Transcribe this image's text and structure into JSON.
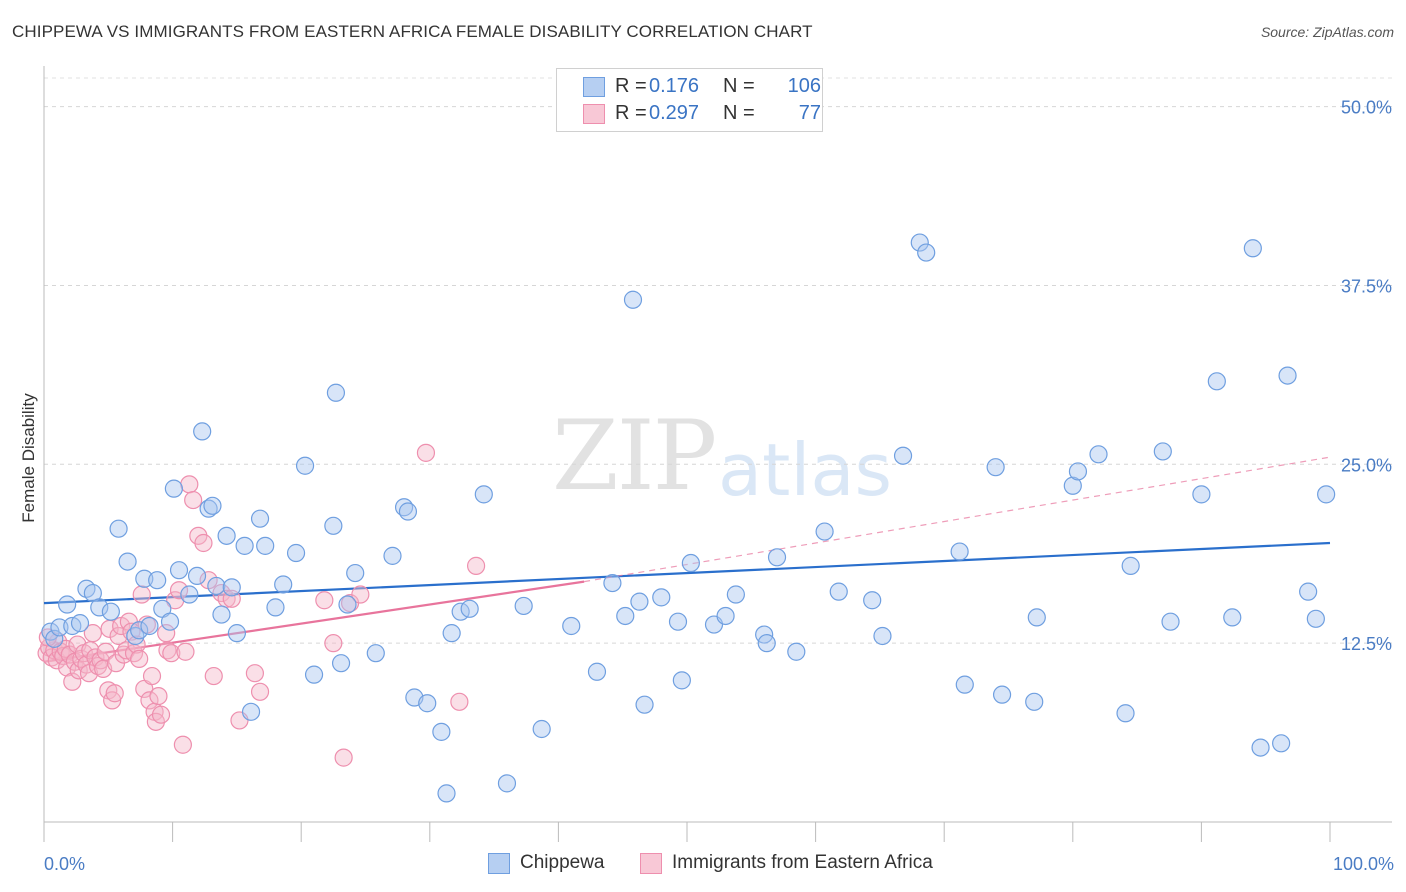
{
  "header": {
    "title": "CHIPPEWA VS IMMIGRANTS FROM EASTERN AFRICA FEMALE DISABILITY CORRELATION CHART",
    "source": "Source: ZipAtlas.com"
  },
  "watermark": {
    "zip": "ZIP",
    "atlas": "atlas"
  },
  "legend": {
    "rows": [
      {
        "r_label": "R =",
        "r_value": "0.176",
        "n_label": "N =",
        "n_value": "106",
        "color": "#a9c6ef"
      },
      {
        "r_label": "R =",
        "r_value": "0.297",
        "n_label": "N =",
        "n_value": "77",
        "color": "#f5b7c9"
      }
    ]
  },
  "bottom_legend": [
    {
      "label": "Chippewa",
      "color": "#a9c6ef"
    },
    {
      "label": "Immigrants from Eastern Africa",
      "color": "#f5b7c9"
    }
  ],
  "chart_data": {
    "type": "scatter",
    "title": "CHIPPEWA VS IMMIGRANTS FROM EASTERN AFRICA FEMALE DISABILITY CORRELATION CHART",
    "xlabel": "",
    "ylabel": "Female Disability",
    "xlim": [
      0,
      100
    ],
    "ylim": [
      0,
      52
    ],
    "x_tick_labels": [
      "0.0%",
      "100.0%"
    ],
    "y_ticks": [
      12.5,
      25.0,
      37.5,
      50.0
    ],
    "y_tick_labels": [
      "12.5%",
      "25.0%",
      "37.5%",
      "50.0%"
    ],
    "grid": "horizontal-dashed",
    "series": [
      {
        "name": "Chippewa",
        "color": "#6f9fe0",
        "fill": "rgba(169,198,239,0.45)",
        "trend": {
          "x0": 0,
          "y0": 15.3,
          "x1": 100,
          "y1": 19.5,
          "style": "solid",
          "color": "#2a6fcc"
        },
        "points": [
          [
            0.5,
            13.3
          ],
          [
            0.8,
            12.8
          ],
          [
            1.2,
            13.6
          ],
          [
            1.8,
            15.2
          ],
          [
            2.2,
            13.7
          ],
          [
            2.8,
            13.9
          ],
          [
            3.3,
            16.3
          ],
          [
            3.8,
            16.0
          ],
          [
            4.3,
            15.0
          ],
          [
            5.2,
            14.7
          ],
          [
            5.8,
            20.5
          ],
          [
            6.5,
            18.2
          ],
          [
            7.1,
            13.0
          ],
          [
            7.4,
            13.4
          ],
          [
            7.8,
            17.0
          ],
          [
            8.2,
            13.7
          ],
          [
            8.8,
            16.9
          ],
          [
            9.2,
            14.9
          ],
          [
            9.8,
            14.0
          ],
          [
            10.1,
            23.3
          ],
          [
            10.5,
            17.6
          ],
          [
            11.3,
            15.9
          ],
          [
            11.9,
            17.2
          ],
          [
            12.3,
            27.3
          ],
          [
            12.8,
            21.9
          ],
          [
            13.1,
            22.1
          ],
          [
            13.4,
            16.5
          ],
          [
            13.8,
            14.5
          ],
          [
            14.2,
            20.0
          ],
          [
            14.6,
            16.4
          ],
          [
            15.0,
            13.2
          ],
          [
            15.6,
            19.3
          ],
          [
            16.1,
            7.7
          ],
          [
            16.8,
            21.2
          ],
          [
            17.2,
            19.3
          ],
          [
            18.0,
            15.0
          ],
          [
            18.6,
            16.6
          ],
          [
            19.6,
            18.8
          ],
          [
            20.3,
            24.9
          ],
          [
            21.0,
            10.3
          ],
          [
            22.5,
            20.7
          ],
          [
            22.7,
            30.0
          ],
          [
            23.1,
            11.1
          ],
          [
            23.6,
            15.2
          ],
          [
            24.2,
            17.4
          ],
          [
            25.8,
            11.8
          ],
          [
            27.1,
            18.6
          ],
          [
            28.0,
            22.0
          ],
          [
            28.3,
            21.7
          ],
          [
            28.8,
            8.7
          ],
          [
            29.8,
            8.3
          ],
          [
            30.9,
            6.3
          ],
          [
            31.3,
            2.0
          ],
          [
            31.7,
            13.2
          ],
          [
            32.4,
            14.7
          ],
          [
            33.1,
            14.9
          ],
          [
            34.2,
            22.9
          ],
          [
            36.0,
            2.7
          ],
          [
            37.3,
            15.1
          ],
          [
            38.7,
            6.5
          ],
          [
            41.0,
            13.7
          ],
          [
            43.0,
            10.5
          ],
          [
            44.2,
            16.7
          ],
          [
            45.2,
            14.4
          ],
          [
            45.8,
            36.5
          ],
          [
            46.3,
            15.4
          ],
          [
            46.7,
            8.2
          ],
          [
            48.0,
            15.7
          ],
          [
            49.3,
            14.0
          ],
          [
            49.6,
            9.9
          ],
          [
            50.3,
            18.1
          ],
          [
            52.1,
            13.8
          ],
          [
            53.0,
            14.4
          ],
          [
            53.8,
            15.9
          ],
          [
            56.0,
            13.1
          ],
          [
            56.2,
            12.5
          ],
          [
            57.0,
            18.5
          ],
          [
            58.5,
            11.9
          ],
          [
            60.7,
            20.3
          ],
          [
            61.8,
            16.1
          ],
          [
            64.4,
            15.5
          ],
          [
            65.2,
            13.0
          ],
          [
            66.8,
            25.6
          ],
          [
            68.1,
            40.5
          ],
          [
            68.6,
            39.8
          ],
          [
            71.2,
            18.9
          ],
          [
            71.6,
            9.6
          ],
          [
            74.0,
            24.8
          ],
          [
            74.5,
            8.9
          ],
          [
            77.0,
            8.4
          ],
          [
            77.2,
            14.3
          ],
          [
            80.0,
            23.5
          ],
          [
            80.4,
            24.5
          ],
          [
            82.0,
            25.7
          ],
          [
            84.1,
            7.6
          ],
          [
            84.5,
            17.9
          ],
          [
            87.0,
            25.9
          ],
          [
            87.6,
            14.0
          ],
          [
            90.0,
            22.9
          ],
          [
            91.2,
            30.8
          ],
          [
            92.4,
            14.3
          ],
          [
            94.0,
            40.1
          ],
          [
            94.6,
            5.2
          ],
          [
            96.2,
            5.5
          ],
          [
            96.7,
            31.2
          ],
          [
            98.3,
            16.1
          ],
          [
            98.9,
            14.2
          ],
          [
            99.7,
            22.9
          ]
        ]
      },
      {
        "name": "Immigrants from Eastern Africa",
        "color": "#ee8fae",
        "fill": "rgba(245,183,201,0.45)",
        "trend": {
          "x0": 0,
          "y0": 11.2,
          "x1": 42,
          "y1": 16.8,
          "style": "solid",
          "color": "#e8749c",
          "ext_x1": 100,
          "ext_y1": 25.5,
          "ext_style": "dashed"
        },
        "points": [
          [
            0.2,
            11.8
          ],
          [
            0.4,
            12.2
          ],
          [
            0.6,
            11.5
          ],
          [
            0.8,
            12.0
          ],
          [
            1.0,
            11.3
          ],
          [
            1.1,
            12.6
          ],
          [
            1.3,
            11.9
          ],
          [
            1.5,
            11.6
          ],
          [
            1.7,
            12.1
          ],
          [
            1.8,
            10.8
          ],
          [
            2.0,
            11.7
          ],
          [
            2.2,
            9.8
          ],
          [
            2.4,
            11.2
          ],
          [
            2.6,
            12.4
          ],
          [
            2.7,
            10.6
          ],
          [
            2.9,
            11.4
          ],
          [
            3.1,
            11.8
          ],
          [
            3.3,
            11.0
          ],
          [
            3.5,
            10.4
          ],
          [
            3.6,
            12.0
          ],
          [
            3.8,
            13.2
          ],
          [
            4.0,
            11.5
          ],
          [
            4.2,
            10.9
          ],
          [
            4.4,
            11.3
          ],
          [
            4.6,
            10.7
          ],
          [
            4.8,
            11.9
          ],
          [
            5.0,
            9.2
          ],
          [
            5.1,
            13.5
          ],
          [
            5.3,
            8.5
          ],
          [
            5.5,
            9.0
          ],
          [
            5.6,
            11.1
          ],
          [
            5.8,
            13.0
          ],
          [
            6.0,
            13.7
          ],
          [
            6.2,
            11.7
          ],
          [
            6.4,
            12.0
          ],
          [
            6.6,
            14.0
          ],
          [
            6.8,
            13.3
          ],
          [
            7.0,
            11.8
          ],
          [
            7.2,
            12.4
          ],
          [
            7.4,
            11.4
          ],
          [
            7.6,
            15.9
          ],
          [
            7.8,
            9.3
          ],
          [
            8.0,
            13.8
          ],
          [
            8.2,
            8.5
          ],
          [
            8.4,
            10.2
          ],
          [
            8.6,
            7.7
          ],
          [
            8.7,
            7.0
          ],
          [
            8.9,
            8.8
          ],
          [
            9.1,
            7.5
          ],
          [
            9.5,
            13.2
          ],
          [
            9.6,
            12.0
          ],
          [
            9.9,
            11.8
          ],
          [
            10.2,
            15.5
          ],
          [
            10.5,
            16.2
          ],
          [
            10.8,
            5.4
          ],
          [
            11.0,
            11.9
          ],
          [
            11.3,
            23.6
          ],
          [
            11.6,
            22.5
          ],
          [
            12.0,
            20.0
          ],
          [
            12.4,
            19.5
          ],
          [
            12.8,
            16.9
          ],
          [
            13.2,
            10.2
          ],
          [
            13.8,
            16.0
          ],
          [
            14.2,
            15.6
          ],
          [
            14.6,
            15.6
          ],
          [
            15.2,
            7.1
          ],
          [
            16.4,
            10.4
          ],
          [
            16.8,
            9.1
          ],
          [
            21.8,
            15.5
          ],
          [
            22.5,
            12.5
          ],
          [
            23.3,
            4.5
          ],
          [
            23.8,
            15.3
          ],
          [
            24.6,
            15.9
          ],
          [
            29.7,
            25.8
          ],
          [
            32.3,
            8.4
          ],
          [
            33.6,
            17.9
          ],
          [
            0.3,
            12.9
          ]
        ]
      }
    ]
  }
}
